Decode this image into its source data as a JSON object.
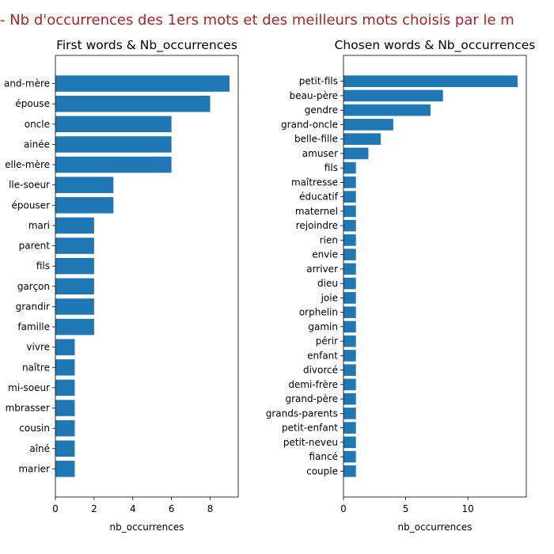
{
  "figure": {
    "suptitle": "- Nb d'occurrences des 1ers mots et des meilleurs mots choisis par le m",
    "suptitle_color": "#b22222",
    "bar_color": "#1f77b4"
  },
  "chart_data": [
    {
      "type": "bar",
      "orientation": "horizontal",
      "title": "First words & Nb_occurrences",
      "xlabel": "nb_occurrences",
      "ylabel": "",
      "xlim": [
        0,
        9.45
      ],
      "xticks": [
        0,
        2,
        4,
        6,
        8
      ],
      "categories": [
        "and-mère",
        "épouse",
        "oncle",
        "ainée",
        "elle-mère",
        "lle-soeur",
        "épouser",
        "mari",
        "parent",
        "fils",
        "garçon",
        "grandir",
        "famille",
        "vivre",
        "naître",
        "mi-soeur",
        "mbrasser",
        "cousin",
        "aîné",
        "marier"
      ],
      "values": [
        9,
        8,
        6,
        6,
        6,
        3,
        3,
        2,
        2,
        2,
        2,
        2,
        2,
        1,
        1,
        1,
        1,
        1,
        1,
        1
      ]
    },
    {
      "type": "bar",
      "orientation": "horizontal",
      "title": "Chosen words & Nb_occurrences",
      "xlabel": "nb_occurrences",
      "ylabel": "",
      "xlim": [
        0,
        14.7
      ],
      "xticks": [
        0,
        5,
        10
      ],
      "categories": [
        "petit-fils",
        "beau-père",
        "gendre",
        "grand-oncle",
        "belle-fille",
        "amuser",
        "fils",
        "maîtresse",
        "éducatif",
        "maternel",
        "rejoindre",
        "rien",
        "envie",
        "arriver",
        "dieu",
        "joie",
        "orphelin",
        "gamin",
        "périr",
        "enfant",
        "divorcé",
        "demi-frère",
        "grand-père",
        "grands-parents",
        "petit-enfant",
        "petit-neveu",
        "fiancé",
        "couple"
      ],
      "values": [
        14,
        8,
        7,
        4,
        3,
        2,
        1,
        1,
        1,
        1,
        1,
        1,
        1,
        1,
        1,
        1,
        1,
        1,
        1,
        1,
        1,
        1,
        1,
        1,
        1,
        1,
        1,
        1
      ]
    }
  ]
}
